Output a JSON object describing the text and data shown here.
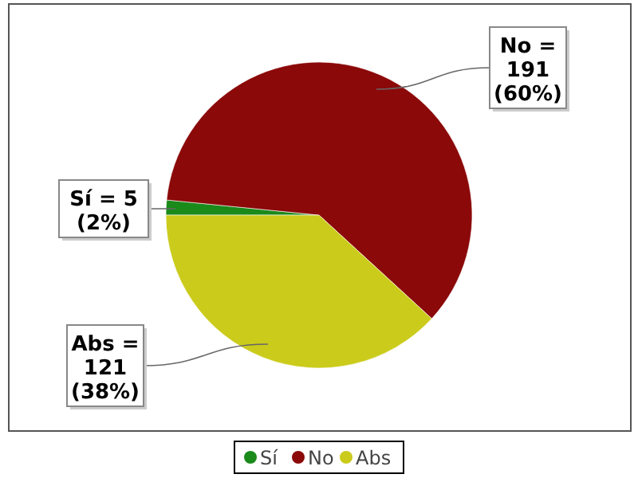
{
  "chart_data": {
    "type": "pie",
    "categories": [
      "Sí",
      "No",
      "Abs"
    ],
    "values": [
      5,
      191,
      121
    ],
    "colors": [
      "#1a8a1a",
      "#8b0909",
      "#cbcb1c"
    ],
    "value_labels": [
      "Sí = 5 (2%)",
      "No = 191 (60%)",
      "Abs = 121 (38%)"
    ],
    "legend": "bottom"
  }
}
